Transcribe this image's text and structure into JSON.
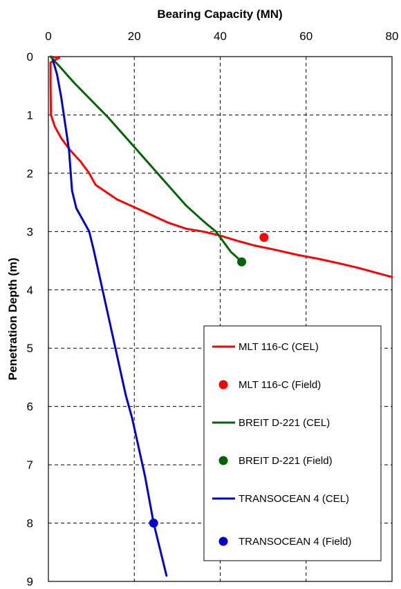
{
  "chart_data": {
    "type": "line",
    "title": "",
    "xlabel": "Bearing Capacity (MN)",
    "ylabel": "Penetration Depth (m)",
    "x_axis_position": "top",
    "y_axis_inverted": true,
    "xlim": [
      0,
      80
    ],
    "ylim": [
      0,
      9
    ],
    "xticks": [
      "0",
      "20",
      "40",
      "60",
      "80"
    ],
    "yticks": [
      "0",
      "1",
      "2",
      "3",
      "4",
      "5",
      "6",
      "7",
      "8",
      "9"
    ],
    "grid": "dashed",
    "legend_position": "lower-right",
    "series": [
      {
        "name": "MLT 116-C (CEL)",
        "kind": "line",
        "color": "#ff0000",
        "points": [
          [
            0.5,
            0
          ],
          [
            2.5,
            0.02
          ],
          [
            0.5,
            0.1
          ],
          [
            0.5,
            0.5
          ],
          [
            0.6,
            1.0
          ],
          [
            1.5,
            1.2
          ],
          [
            3,
            1.4
          ],
          [
            5,
            1.6
          ],
          [
            7.5,
            1.8
          ],
          [
            9.5,
            2.0
          ],
          [
            11,
            2.2
          ],
          [
            13,
            2.3
          ],
          [
            16,
            2.45
          ],
          [
            19,
            2.55
          ],
          [
            22,
            2.65
          ],
          [
            25,
            2.75
          ],
          [
            28,
            2.85
          ],
          [
            32,
            2.95
          ],
          [
            36,
            3.0
          ],
          [
            40,
            3.07
          ],
          [
            44,
            3.16
          ],
          [
            48,
            3.24
          ],
          [
            52,
            3.3
          ],
          [
            58,
            3.4
          ],
          [
            63,
            3.47
          ],
          [
            68,
            3.55
          ],
          [
            72,
            3.62
          ],
          [
            76,
            3.7
          ],
          [
            80,
            3.78
          ]
        ]
      },
      {
        "name": "MLT 116-C (Field)",
        "kind": "marker",
        "color": "#ff0000",
        "points": [
          [
            50.2,
            3.1
          ]
        ]
      },
      {
        "name": "BREIT D-221 (CEL)",
        "kind": "line",
        "color": "#006400",
        "points": [
          [
            0.5,
            0
          ],
          [
            3,
            0.2
          ],
          [
            6,
            0.45
          ],
          [
            10,
            0.75
          ],
          [
            14,
            1.05
          ],
          [
            17,
            1.3
          ],
          [
            20,
            1.55
          ],
          [
            23,
            1.8
          ],
          [
            26,
            2.05
          ],
          [
            29,
            2.3
          ],
          [
            32,
            2.55
          ],
          [
            35,
            2.75
          ],
          [
            37,
            2.88
          ],
          [
            39,
            3.0
          ],
          [
            40,
            3.1
          ],
          [
            41,
            3.2
          ],
          [
            42.5,
            3.35
          ],
          [
            44,
            3.45
          ],
          [
            45,
            3.52
          ]
        ]
      },
      {
        "name": "BREIT D-221 (Field)",
        "kind": "marker",
        "color": "#006400",
        "points": [
          [
            45,
            3.52
          ]
        ]
      },
      {
        "name": "TRANSOCEAN 4 (CEL)",
        "kind": "line",
        "color": "#0000cc",
        "points": [
          [
            1,
            0.05
          ],
          [
            2,
            0.3
          ],
          [
            3,
            0.7
          ],
          [
            4,
            1.2
          ],
          [
            4.8,
            1.6
          ],
          [
            5.2,
            2.0
          ],
          [
            5.5,
            2.3
          ],
          [
            6.5,
            2.6
          ],
          [
            8,
            2.8
          ],
          [
            9.5,
            3.0
          ],
          [
            10.5,
            3.3
          ],
          [
            12,
            3.8
          ],
          [
            13.5,
            4.3
          ],
          [
            15,
            4.8
          ],
          [
            16.5,
            5.3
          ],
          [
            18,
            5.8
          ],
          [
            19.5,
            6.2
          ],
          [
            21,
            6.7
          ],
          [
            22.5,
            7.2
          ],
          [
            23.5,
            7.6
          ],
          [
            24.5,
            8.0
          ],
          [
            25.5,
            8.3
          ],
          [
            26.5,
            8.6
          ],
          [
            27.5,
            8.9
          ]
        ]
      },
      {
        "name": "TRANSOCEAN 4 (Field)",
        "kind": "marker",
        "color": "#0000cc",
        "points": [
          [
            24.5,
            8.0
          ]
        ]
      }
    ]
  }
}
